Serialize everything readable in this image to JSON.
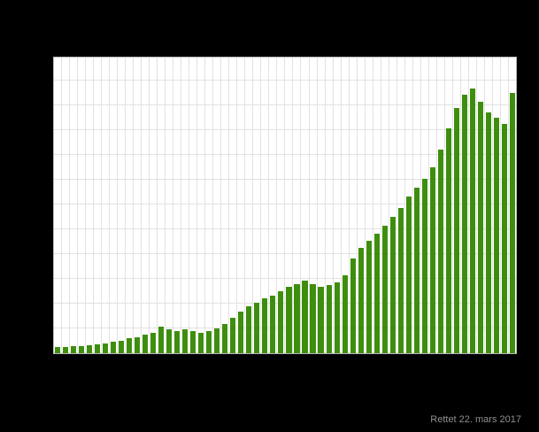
{
  "colors": {
    "background": "#000000",
    "plot_background": "#ffffff",
    "grid": "#e2e2e2",
    "bar": "#3e8e0e",
    "footnote_text": "#8f8f8f"
  },
  "footnote": "Rettet 22. mars 2017",
  "chart_data": {
    "type": "bar",
    "title": "",
    "xlabel": "",
    "ylabel": "",
    "axis_tick_labels_visible": false,
    "grid": true,
    "legend": false,
    "ylim": [
      0,
      100
    ],
    "n_bars": 58,
    "values": [
      2,
      2,
      2.3,
      2.5,
      2.8,
      3,
      3.3,
      3.8,
      4.3,
      5,
      5.5,
      6.2,
      7,
      9,
      8.2,
      7.6,
      8,
      7.6,
      7,
      7.5,
      8.5,
      10,
      12,
      14,
      16,
      17,
      18.5,
      19.5,
      21,
      22.5,
      23.5,
      24.5,
      23.5,
      22.5,
      23,
      24,
      26.5,
      32,
      35.5,
      38,
      40.5,
      43,
      46,
      49,
      53,
      56,
      59,
      63,
      69,
      76,
      83,
      87.5,
      89.5,
      85,
      81.5,
      79.5,
      77.5,
      88
    ]
  }
}
